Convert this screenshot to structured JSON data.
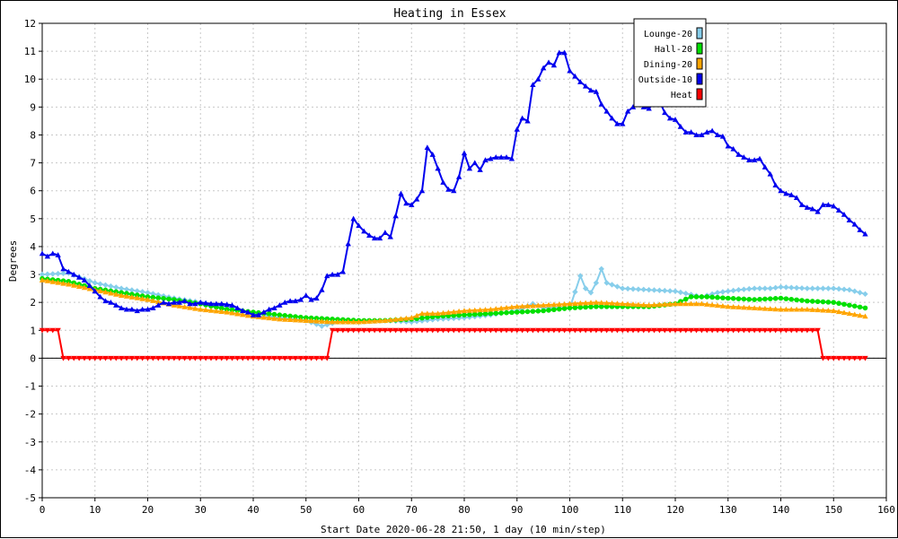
{
  "chart_data": {
    "type": "line",
    "title": "Heating in Essex",
    "xlabel": "Start Date 2020-06-28 21:50, 1 day (10 min/step)",
    "ylabel": "Degrees",
    "xlim": [
      0,
      160
    ],
    "ylim": [
      -5,
      12
    ],
    "x_ticks": [
      0,
      10,
      20,
      30,
      40,
      50,
      60,
      70,
      80,
      90,
      100,
      110,
      120,
      130,
      140,
      150,
      160
    ],
    "y_ticks": [
      -5,
      -4,
      -3,
      -2,
      -1,
      0,
      1,
      2,
      3,
      4,
      5,
      6,
      7,
      8,
      9,
      10,
      11,
      12
    ],
    "grid": true,
    "legend_position": "top-right",
    "series": [
      {
        "name": "Lounge-20",
        "color": "#87ceeb",
        "marker": "diamond",
        "points": [
          [
            0,
            3.0
          ],
          [
            5,
            3.05
          ],
          [
            10,
            2.7
          ],
          [
            15,
            2.5
          ],
          [
            20,
            2.35
          ],
          [
            25,
            2.15
          ],
          [
            30,
            2.0
          ],
          [
            35,
            1.85
          ],
          [
            40,
            1.6
          ],
          [
            45,
            1.45
          ],
          [
            50,
            1.35
          ],
          [
            53,
            1.15
          ],
          [
            56,
            1.3
          ],
          [
            60,
            1.3
          ],
          [
            65,
            1.35
          ],
          [
            70,
            1.3
          ],
          [
            75,
            1.4
          ],
          [
            80,
            1.45
          ],
          [
            85,
            1.55
          ],
          [
            90,
            1.7
          ],
          [
            93,
            1.95
          ],
          [
            95,
            1.8
          ],
          [
            100,
            1.8
          ],
          [
            102,
            2.95
          ],
          [
            103,
            2.5
          ],
          [
            104,
            2.35
          ],
          [
            105,
            2.7
          ],
          [
            106,
            3.2
          ],
          [
            107,
            2.7
          ],
          [
            110,
            2.5
          ],
          [
            115,
            2.45
          ],
          [
            120,
            2.4
          ],
          [
            125,
            2.2
          ],
          [
            128,
            2.35
          ],
          [
            132,
            2.45
          ],
          [
            135,
            2.5
          ],
          [
            138,
            2.5
          ],
          [
            140,
            2.55
          ],
          [
            145,
            2.5
          ],
          [
            150,
            2.5
          ],
          [
            153,
            2.45
          ],
          [
            156,
            2.3
          ]
        ]
      },
      {
        "name": "Hall-20",
        "color": "#00e000",
        "marker": "circle",
        "points": [
          [
            0,
            2.85
          ],
          [
            5,
            2.75
          ],
          [
            10,
            2.5
          ],
          [
            15,
            2.35
          ],
          [
            20,
            2.2
          ],
          [
            25,
            2.1
          ],
          [
            30,
            1.95
          ],
          [
            35,
            1.75
          ],
          [
            40,
            1.65
          ],
          [
            45,
            1.55
          ],
          [
            50,
            1.45
          ],
          [
            55,
            1.4
          ],
          [
            60,
            1.35
          ],
          [
            65,
            1.35
          ],
          [
            70,
            1.4
          ],
          [
            75,
            1.5
          ],
          [
            80,
            1.55
          ],
          [
            85,
            1.6
          ],
          [
            90,
            1.65
          ],
          [
            95,
            1.7
          ],
          [
            100,
            1.8
          ],
          [
            105,
            1.85
          ],
          [
            110,
            1.85
          ],
          [
            115,
            1.85
          ],
          [
            120,
            1.95
          ],
          [
            123,
            2.2
          ],
          [
            126,
            2.2
          ],
          [
            130,
            2.15
          ],
          [
            135,
            2.1
          ],
          [
            140,
            2.15
          ],
          [
            145,
            2.05
          ],
          [
            150,
            2.0
          ],
          [
            153,
            1.9
          ],
          [
            156,
            1.8
          ]
        ]
      },
      {
        "name": "Dining-20",
        "color": "#ffa500",
        "marker": "triangle-up",
        "points": [
          [
            0,
            2.8
          ],
          [
            5,
            2.65
          ],
          [
            10,
            2.45
          ],
          [
            15,
            2.25
          ],
          [
            20,
            2.1
          ],
          [
            25,
            1.9
          ],
          [
            30,
            1.75
          ],
          [
            35,
            1.65
          ],
          [
            40,
            1.5
          ],
          [
            45,
            1.4
          ],
          [
            50,
            1.35
          ],
          [
            55,
            1.3
          ],
          [
            60,
            1.3
          ],
          [
            65,
            1.35
          ],
          [
            70,
            1.45
          ],
          [
            72,
            1.6
          ],
          [
            75,
            1.6
          ],
          [
            80,
            1.7
          ],
          [
            85,
            1.75
          ],
          [
            90,
            1.85
          ],
          [
            95,
            1.9
          ],
          [
            100,
            1.95
          ],
          [
            105,
            2.0
          ],
          [
            110,
            1.95
          ],
          [
            115,
            1.9
          ],
          [
            120,
            1.95
          ],
          [
            125,
            1.95
          ],
          [
            130,
            1.85
          ],
          [
            135,
            1.8
          ],
          [
            140,
            1.75
          ],
          [
            145,
            1.75
          ],
          [
            150,
            1.7
          ],
          [
            156,
            1.5
          ]
        ]
      },
      {
        "name": "Outside-10",
        "color": "#0000ee",
        "marker": "triangle-up",
        "points": [
          [
            0,
            3.75
          ],
          [
            1,
            3.65
          ],
          [
            2,
            3.75
          ],
          [
            3,
            3.7
          ],
          [
            4,
            3.2
          ],
          [
            5,
            3.1
          ],
          [
            6,
            3.0
          ],
          [
            7,
            2.9
          ],
          [
            8,
            2.8
          ],
          [
            9,
            2.6
          ],
          [
            10,
            2.4
          ],
          [
            11,
            2.2
          ],
          [
            12,
            2.05
          ],
          [
            13,
            2.0
          ],
          [
            14,
            1.9
          ],
          [
            15,
            1.8
          ],
          [
            16,
            1.75
          ],
          [
            17,
            1.75
          ],
          [
            18,
            1.7
          ],
          [
            19,
            1.75
          ],
          [
            20,
            1.75
          ],
          [
            21,
            1.8
          ],
          [
            22,
            1.9
          ],
          [
            23,
            2.0
          ],
          [
            24,
            1.95
          ],
          [
            25,
            2.0
          ],
          [
            26,
            2.0
          ],
          [
            27,
            2.05
          ],
          [
            28,
            1.95
          ],
          [
            29,
            1.95
          ],
          [
            30,
            2.0
          ],
          [
            32,
            1.95
          ],
          [
            34,
            1.95
          ],
          [
            36,
            1.9
          ],
          [
            37,
            1.8
          ],
          [
            38,
            1.7
          ],
          [
            39,
            1.65
          ],
          [
            40,
            1.55
          ],
          [
            41,
            1.55
          ],
          [
            42,
            1.65
          ],
          [
            43,
            1.75
          ],
          [
            44,
            1.8
          ],
          [
            45,
            1.9
          ],
          [
            46,
            2.0
          ],
          [
            47,
            2.05
          ],
          [
            48,
            2.05
          ],
          [
            49,
            2.1
          ],
          [
            50,
            2.25
          ],
          [
            51,
            2.1
          ],
          [
            52,
            2.15
          ],
          [
            53,
            2.45
          ],
          [
            54,
            2.95
          ],
          [
            55,
            3.0
          ],
          [
            56,
            3.0
          ],
          [
            57,
            3.1
          ],
          [
            58,
            4.1
          ],
          [
            59,
            5.0
          ],
          [
            60,
            4.75
          ],
          [
            61,
            4.55
          ],
          [
            62,
            4.4
          ],
          [
            63,
            4.3
          ],
          [
            64,
            4.3
          ],
          [
            65,
            4.5
          ],
          [
            66,
            4.35
          ],
          [
            67,
            5.1
          ],
          [
            68,
            5.9
          ],
          [
            69,
            5.55
          ],
          [
            70,
            5.5
          ],
          [
            71,
            5.7
          ],
          [
            72,
            6.0
          ],
          [
            73,
            7.55
          ],
          [
            74,
            7.3
          ],
          [
            75,
            6.8
          ],
          [
            76,
            6.3
          ],
          [
            77,
            6.05
          ],
          [
            78,
            6.0
          ],
          [
            79,
            6.5
          ],
          [
            80,
            7.35
          ],
          [
            81,
            6.8
          ],
          [
            82,
            7.0
          ],
          [
            83,
            6.75
          ],
          [
            84,
            7.1
          ],
          [
            85,
            7.15
          ],
          [
            86,
            7.2
          ],
          [
            87,
            7.2
          ],
          [
            88,
            7.2
          ],
          [
            89,
            7.15
          ],
          [
            90,
            8.2
          ],
          [
            91,
            8.6
          ],
          [
            92,
            8.5
          ],
          [
            93,
            9.8
          ],
          [
            94,
            10.0
          ],
          [
            95,
            10.4
          ],
          [
            96,
            10.6
          ],
          [
            97,
            10.5
          ],
          [
            98,
            10.95
          ],
          [
            99,
            10.95
          ],
          [
            100,
            10.3
          ],
          [
            101,
            10.1
          ],
          [
            102,
            9.9
          ],
          [
            103,
            9.75
          ],
          [
            104,
            9.6
          ],
          [
            105,
            9.55
          ],
          [
            106,
            9.1
          ],
          [
            107,
            8.85
          ],
          [
            108,
            8.6
          ],
          [
            109,
            8.4
          ],
          [
            110,
            8.4
          ],
          [
            111,
            8.85
          ],
          [
            112,
            9.0
          ],
          [
            113,
            9.2
          ],
          [
            114,
            9.0
          ],
          [
            115,
            8.95
          ],
          [
            116,
            9.15
          ],
          [
            117,
            9.2
          ],
          [
            118,
            8.8
          ],
          [
            119,
            8.6
          ],
          [
            120,
            8.55
          ],
          [
            121,
            8.3
          ],
          [
            122,
            8.1
          ],
          [
            123,
            8.1
          ],
          [
            124,
            8.0
          ],
          [
            125,
            8.0
          ],
          [
            126,
            8.1
          ],
          [
            127,
            8.15
          ],
          [
            128,
            8.0
          ],
          [
            129,
            7.95
          ],
          [
            130,
            7.6
          ],
          [
            131,
            7.5
          ],
          [
            132,
            7.3
          ],
          [
            133,
            7.2
          ],
          [
            134,
            7.1
          ],
          [
            135,
            7.1
          ],
          [
            136,
            7.15
          ],
          [
            137,
            6.85
          ],
          [
            138,
            6.6
          ],
          [
            139,
            6.2
          ],
          [
            140,
            6.0
          ],
          [
            141,
            5.9
          ],
          [
            142,
            5.85
          ],
          [
            143,
            5.75
          ],
          [
            144,
            5.5
          ],
          [
            145,
            5.4
          ],
          [
            146,
            5.35
          ],
          [
            147,
            5.25
          ],
          [
            148,
            5.5
          ],
          [
            149,
            5.5
          ],
          [
            150,
            5.45
          ],
          [
            151,
            5.3
          ],
          [
            152,
            5.15
          ],
          [
            153,
            4.95
          ],
          [
            154,
            4.8
          ],
          [
            155,
            4.6
          ],
          [
            156,
            4.45
          ]
        ]
      },
      {
        "name": "Heat",
        "color": "#ff0000",
        "marker": "triangle-down",
        "step": true,
        "points": [
          [
            0,
            1
          ],
          [
            3,
            1
          ],
          [
            4,
            0
          ],
          [
            54,
            0
          ],
          [
            55,
            1
          ],
          [
            147,
            1
          ],
          [
            148,
            0
          ],
          [
            156,
            0
          ]
        ]
      }
    ]
  }
}
